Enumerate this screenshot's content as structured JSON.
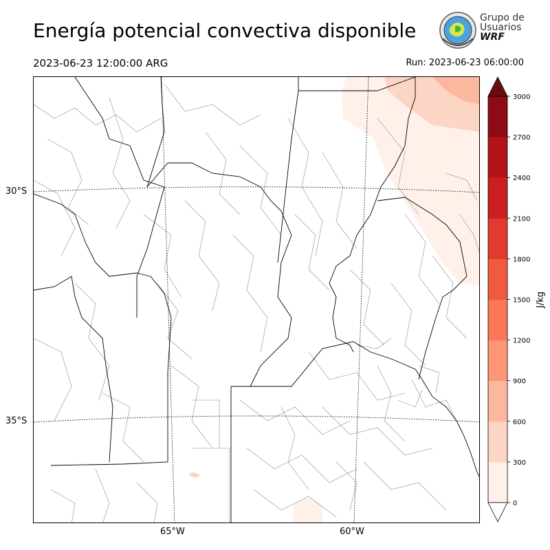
{
  "header": {
    "title": "Energía potencial convectiva disponible",
    "valid_time": "2023-06-23 12:00:00 ARG",
    "run_time": "Run: 2023-06-23 06:00:00"
  },
  "logo": {
    "line1": "Grupo de",
    "line2": "Usuarios",
    "line3": "WRF"
  },
  "axes": {
    "lat_labels": [
      "30°S",
      "35°S"
    ],
    "lon_labels": [
      "65°W",
      "60°W"
    ]
  },
  "colorbar": {
    "label": "J/kg",
    "ticks": [
      "0",
      "300",
      "600",
      "900",
      "1200",
      "1500",
      "1800",
      "2100",
      "2400",
      "2700",
      "3000"
    ],
    "colors": [
      "#fff0ea",
      "#fdd5c4",
      "#fcb89f",
      "#fc9677",
      "#fb7757",
      "#f05a3f",
      "#e13a2e",
      "#cc1e1f",
      "#b41319",
      "#8e0a14",
      "#6b0d0f"
    ],
    "extend_color": "#6b0d0f"
  },
  "colors": {
    "cape_low": "#fff0ea",
    "cape_mid": "#fdd5c4",
    "cape_high": "#fcb89f",
    "boundary": "#000000",
    "district": "#8c8c8c"
  }
}
